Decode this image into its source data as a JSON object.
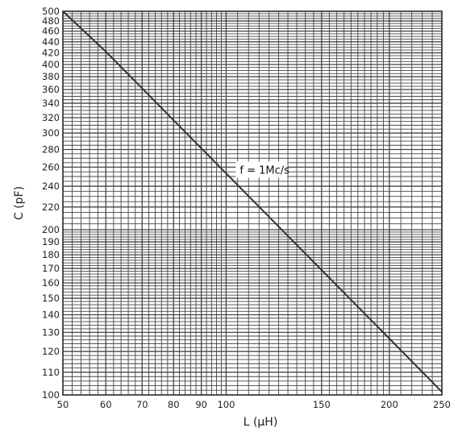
{
  "chart_data": {
    "type": "line",
    "scale": "log-log",
    "grid": true,
    "xlabel": "L (μH)",
    "ylabel": "C (pF)",
    "xlim": [
      50,
      250
    ],
    "ylim": [
      100,
      500
    ],
    "x_tick_labels": [
      "50",
      "60",
      "70",
      "80",
      "90",
      "100",
      "150",
      "200",
      "250"
    ],
    "y_tick_labels": [
      "100",
      "110",
      "120",
      "130",
      "140",
      "150",
      "160",
      "170",
      "180",
      "190",
      "200",
      "220",
      "240",
      "260",
      "280",
      "300",
      "320",
      "340",
      "360",
      "380",
      "400",
      "420",
      "440",
      "460",
      "480",
      "500"
    ],
    "series": [
      {
        "x": [
          50,
          60,
          70,
          80,
          90,
          100,
          150,
          200,
          250
        ],
        "y": [
          506.6,
          422.2,
          361.9,
          316.6,
          281.5,
          253.3,
          168.9,
          126.7,
          101.3
        ]
      }
    ],
    "annotation": "f = 1Mc/s"
  }
}
